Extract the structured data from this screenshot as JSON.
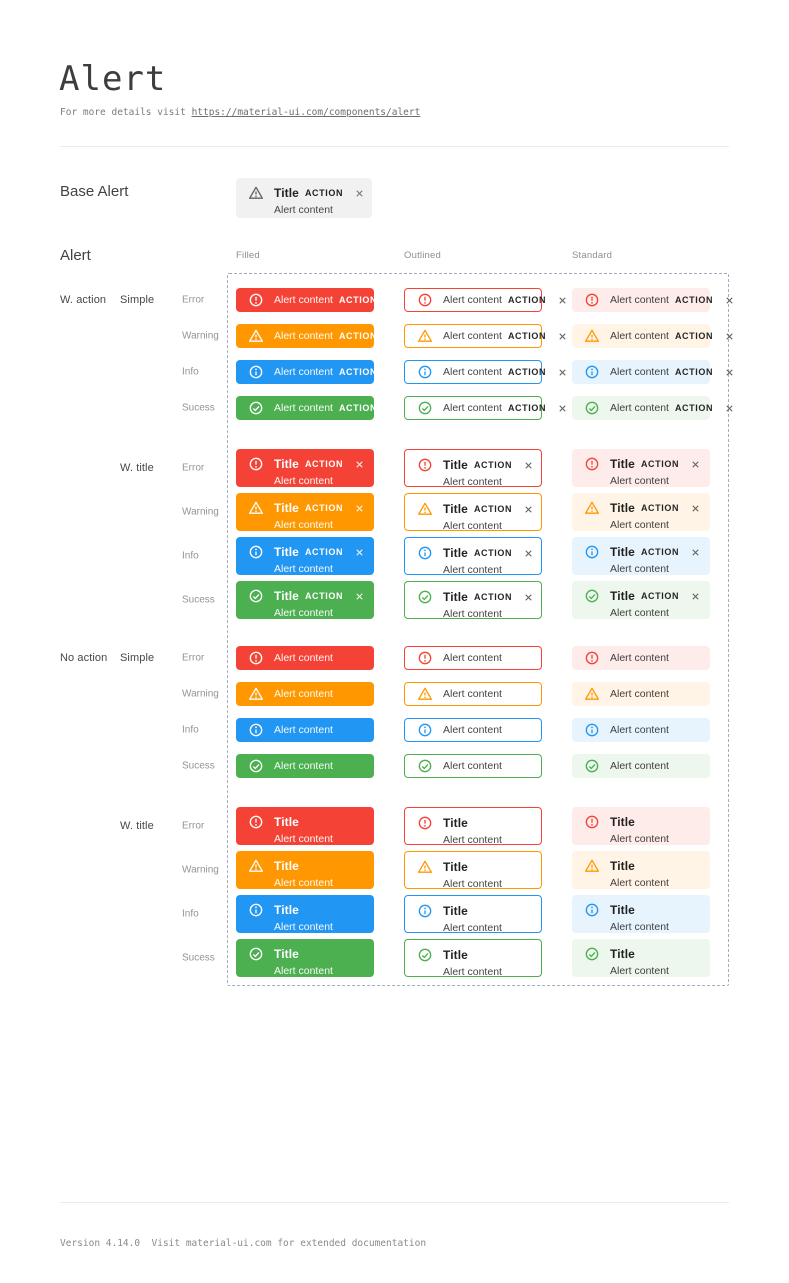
{
  "page": {
    "title": "Alert",
    "subtitle_prefix": "For more details visit ",
    "subtitle_link": "https://material-ui.com/components/alert",
    "footer_text": "Version 4.14.0  Visit material-ui.com for extended documentation"
  },
  "base_section": {
    "label": "Base Alert"
  },
  "base_alert": {
    "icon": "warning-triangle-icon",
    "title": "Title",
    "content": "Alert content",
    "action": "ACTION",
    "bg": "#f1f1f1",
    "icon_color": "#5f6368"
  },
  "grid": {
    "section_label": "Alert",
    "column_headers": [
      "Filled",
      "Outlined",
      "Standard"
    ],
    "variants": [
      "filled",
      "outlined",
      "standard"
    ],
    "groups": [
      {
        "label": "W. action",
        "has_action": true,
        "subgroups": [
          {
            "label": "Simple",
            "has_title": false
          },
          {
            "label": "W. title",
            "has_title": true
          }
        ]
      },
      {
        "label": "No action",
        "has_action": false,
        "subgroups": [
          {
            "label": "Simple",
            "has_title": false
          },
          {
            "label": "W. title",
            "has_title": true
          }
        ]
      }
    ],
    "severities": [
      {
        "key": "error",
        "label": "Error",
        "icon": "error-outline-icon",
        "main": "#f44336",
        "standard_bg": "#fdecea"
      },
      {
        "key": "warning",
        "label": "Warning",
        "icon": "warning-triangle-icon",
        "main": "#ff9800",
        "standard_bg": "#fff4e5"
      },
      {
        "key": "info",
        "label": "Info",
        "icon": "info-outline-icon",
        "main": "#2196f3",
        "standard_bg": "#e8f4fd"
      },
      {
        "key": "success",
        "label": "Sucess",
        "icon": "check-circle-icon",
        "main": "#4caf50",
        "standard_bg": "#edf7ed"
      }
    ],
    "alert_text": {
      "title": "Title",
      "content": "Alert content",
      "action": "ACTION"
    }
  },
  "colors": {
    "filled_text": "#ffffff",
    "dark_text": "#2b2b2b",
    "close_gray": "#616161",
    "dashed_border": "#a2abc0"
  }
}
